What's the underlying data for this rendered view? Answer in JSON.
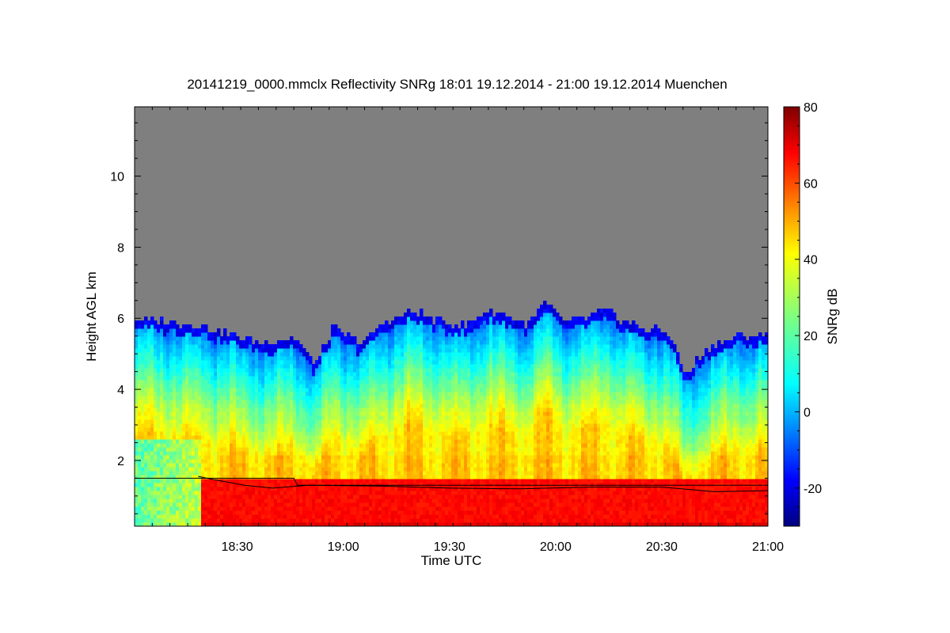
{
  "chart_data": {
    "type": "heatmap",
    "title": "20141219_0000.mmclx Reflectivity SNRg   18:01 19.12.2014 - 21:00 19.12.2014 Muenchen",
    "xlabel": "Time UTC",
    "ylabel": "Height AGL km",
    "x_range_utc": [
      "18:01",
      "21:00"
    ],
    "x_range_minutes": [
      1081,
      1260
    ],
    "x_ticks": [
      {
        "label": "18:30",
        "value": 1110
      },
      {
        "label": "19:00",
        "value": 1140
      },
      {
        "label": "19:30",
        "value": 1170
      },
      {
        "label": "20:00",
        "value": 1200
      },
      {
        "label": "20:30",
        "value": 1230
      },
      {
        "label": "21:00",
        "value": 1260
      }
    ],
    "ylim": [
      0.15,
      11.95
    ],
    "y_ticks": [
      2,
      4,
      6,
      8,
      10
    ],
    "colorbar": {
      "label": "SNRg dB",
      "range": [
        -30,
        80
      ],
      "ticks": [
        -20,
        0,
        20,
        40,
        60,
        80
      ],
      "colormap": "jet"
    },
    "no_signal_color": "#7f7f7f",
    "echo_top_km": [
      {
        "time": 1081,
        "top": 6.0
      },
      {
        "time": 1090,
        "top": 5.9
      },
      {
        "time": 1100,
        "top": 5.8
      },
      {
        "time": 1106,
        "top": 5.6
      },
      {
        "time": 1113,
        "top": 5.4
      },
      {
        "time": 1118,
        "top": 5.3
      },
      {
        "time": 1126,
        "top": 5.5
      },
      {
        "time": 1132,
        "top": 4.7
      },
      {
        "time": 1137,
        "top": 5.7
      },
      {
        "time": 1145,
        "top": 5.3
      },
      {
        "time": 1152,
        "top": 5.9
      },
      {
        "time": 1160,
        "top": 6.2
      },
      {
        "time": 1168,
        "top": 5.9
      },
      {
        "time": 1175,
        "top": 5.8
      },
      {
        "time": 1180,
        "top": 6.2
      },
      {
        "time": 1186,
        "top": 6.1
      },
      {
        "time": 1192,
        "top": 5.8
      },
      {
        "time": 1197,
        "top": 6.4
      },
      {
        "time": 1203,
        "top": 5.9
      },
      {
        "time": 1208,
        "top": 6.0
      },
      {
        "time": 1214,
        "top": 6.2
      },
      {
        "time": 1220,
        "top": 5.9
      },
      {
        "time": 1226,
        "top": 5.7
      },
      {
        "time": 1232,
        "top": 5.6
      },
      {
        "time": 1237,
        "top": 4.4
      },
      {
        "time": 1241,
        "top": 5.0
      },
      {
        "time": 1246,
        "top": 5.3
      },
      {
        "time": 1252,
        "top": 5.5
      },
      {
        "time": 1260,
        "top": 5.5
      }
    ],
    "strong_layer_top_km": 1.5,
    "strong_layer_start": 1100,
    "surface_line_km": [
      {
        "time": 1081,
        "h": 1.5
      },
      {
        "time": 1126,
        "h": 1.5
      },
      {
        "time": 1127,
        "h": 1.3
      },
      {
        "time": 1260,
        "h": 1.3
      }
    ],
    "detected_line_km": [
      {
        "time": 1099,
        "h": 1.55
      },
      {
        "time": 1104,
        "h": 1.45
      },
      {
        "time": 1112,
        "h": 1.3
      },
      {
        "time": 1120,
        "h": 1.22
      },
      {
        "time": 1130,
        "h": 1.3
      },
      {
        "time": 1150,
        "h": 1.28
      },
      {
        "time": 1170,
        "h": 1.22
      },
      {
        "time": 1190,
        "h": 1.2
      },
      {
        "time": 1210,
        "h": 1.25
      },
      {
        "time": 1230,
        "h": 1.25
      },
      {
        "time": 1245,
        "h": 1.12
      },
      {
        "time": 1260,
        "h": 1.15
      }
    ]
  }
}
